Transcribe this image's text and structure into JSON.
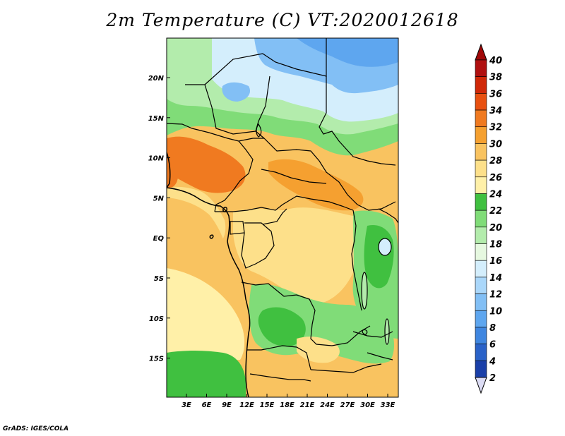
{
  "title": "2m Temperature (C) VT:2020012618",
  "credit": "GrADS: IGES/COLA",
  "lat_labels": [
    "20N",
    "15N",
    "10N",
    "5N",
    "EQ",
    "5S",
    "10S",
    "15S"
  ],
  "lon_labels": [
    "3E",
    "6E",
    "9E",
    "12E",
    "15E",
    "18E",
    "21E",
    "24E",
    "27E",
    "30E",
    "33E"
  ],
  "colorbar": {
    "unit": "C",
    "levels": [
      2,
      4,
      6,
      8,
      10,
      12,
      14,
      16,
      18,
      20,
      22,
      24,
      26,
      28,
      30,
      32,
      34,
      36,
      38,
      40
    ],
    "colors": [
      "#10106e",
      "#1a3fa8",
      "#2a62c8",
      "#3f86e0",
      "#5ea6ef",
      "#82bff5",
      "#aad7fa",
      "#d4eefc",
      "#e6f8e0",
      "#b3ecac",
      "#80dc78",
      "#40c040",
      "#fff0a8",
      "#fde08a",
      "#f9c360",
      "#f5a030",
      "#f07a20",
      "#e85010",
      "#d02808",
      "#b01010",
      "#a00808"
    ],
    "labels": [
      "40",
      "38",
      "36",
      "34",
      "32",
      "30",
      "28",
      "26",
      "24",
      "22",
      "20",
      "18",
      "16",
      "14",
      "12",
      "10",
      "8",
      "6",
      "4",
      "2"
    ]
  },
  "legend_colors": {
    "cold_blue": "#5ea6ef",
    "pale_blue": "#d4eefc",
    "green": "#40c040",
    "light_green": "#b3ecac",
    "pale_yellow": "#fff0a8",
    "orange": "#f9c360",
    "hot_orange": "#f07a20"
  }
}
